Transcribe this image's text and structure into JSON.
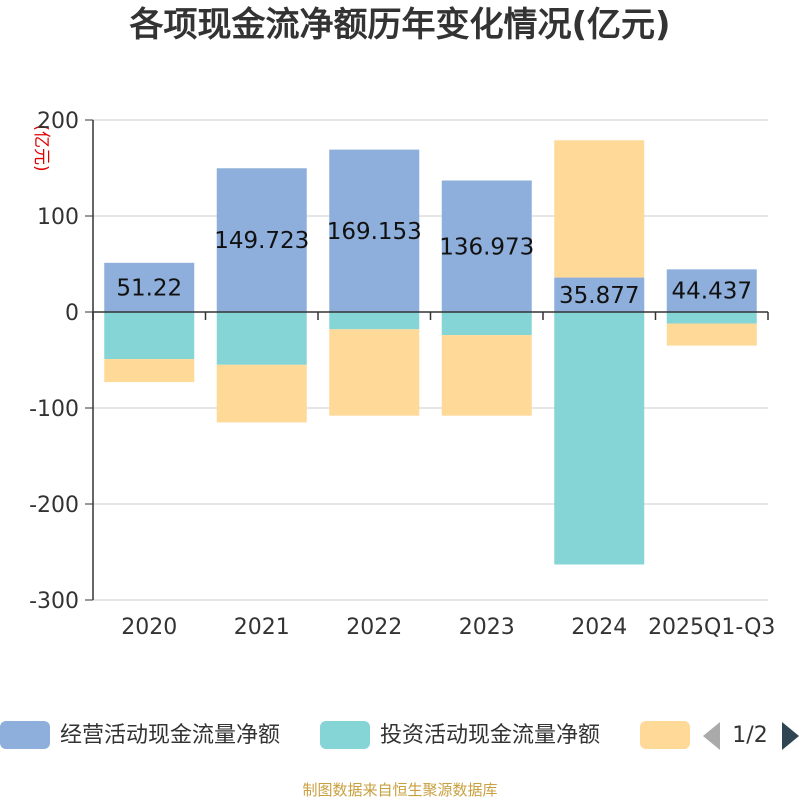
{
  "chart_data": {
    "type": "bar",
    "stacked": true,
    "title": "各项现金流净额历年变化情况(亿元)",
    "ylabel": "(亿元)",
    "ylim": [
      -300,
      200
    ],
    "yticks": [
      200,
      100,
      0,
      -100,
      -200,
      -300
    ],
    "categories": [
      "2020",
      "2021",
      "2022",
      "2023",
      "2024",
      "2025Q1-Q3"
    ],
    "series": [
      {
        "name": "经营活动现金流量净额",
        "color": "#8eaedb",
        "values": [
          51.22,
          149.723,
          169.153,
          136.973,
          35.877,
          44.437
        ],
        "labels": [
          "51.22",
          "149.723",
          "169.153",
          "136.973",
          "35.877",
          "44.437"
        ]
      },
      {
        "name": "投资活动现金流量净额",
        "color": "#86d5d6",
        "values": [
          -49,
          -55,
          -18,
          -24,
          -263,
          -12
        ]
      },
      {
        "name": "",
        "color": "#fed998",
        "values": [
          -24,
          -60,
          -90,
          -84,
          143,
          -23
        ]
      }
    ],
    "legend_page": "1/2",
    "source": "制图数据来自恒生聚源数据库"
  }
}
